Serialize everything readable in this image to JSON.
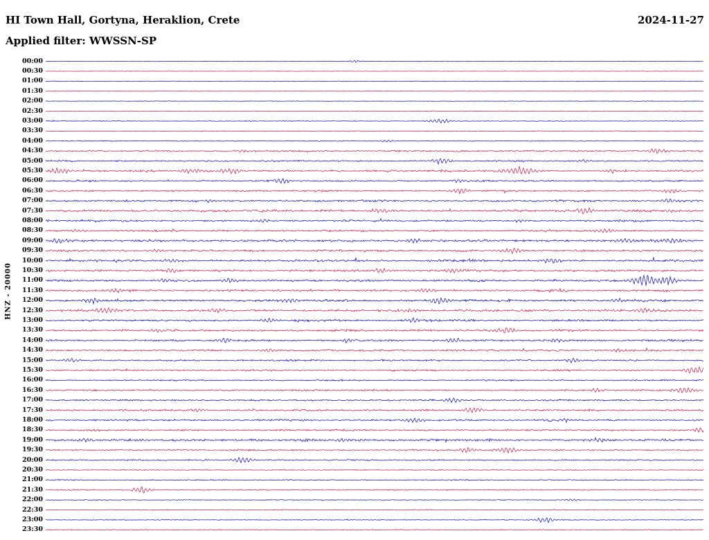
{
  "header": {
    "title": "HI Town Hall, Gortyna, Heraklion, Crete",
    "date": "2024-11-27",
    "filter_label": "Applied filter: WWSSN-SP"
  },
  "axis": {
    "channel_label": "HNZ - 20000"
  },
  "chart_data": {
    "type": "line",
    "subtype": "helicorder-seismogram",
    "title": "HI Town Hall, Gortyna, Heraklion, Crete",
    "date": "2024-11-27",
    "filter": "WWSSN-SP",
    "station_channel": "HNZ",
    "scale": "20000",
    "minutes_per_row": 30,
    "row_count": 48,
    "time_start": "00:00",
    "time_end": "23:30",
    "grid": false,
    "legend": "none",
    "colors": {
      "blue": "#0000bf",
      "red": "#cc0c3c"
    },
    "rows": [
      {
        "t": "00:00",
        "c": "blue",
        "n": 0.35,
        "e": [
          [
            0.47,
            1.3,
            6
          ]
        ]
      },
      {
        "t": "00:30",
        "c": "red",
        "n": 0.3,
        "e": []
      },
      {
        "t": "01:00",
        "c": "blue",
        "n": 0.35,
        "e": []
      },
      {
        "t": "01:30",
        "c": "red",
        "n": 0.3,
        "e": []
      },
      {
        "t": "02:00",
        "c": "blue",
        "n": 0.35,
        "e": []
      },
      {
        "t": "02:30",
        "c": "red",
        "n": 0.4,
        "e": []
      },
      {
        "t": "03:00",
        "c": "blue",
        "n": 0.5,
        "e": [
          [
            0.6,
            2.6,
            12
          ]
        ]
      },
      {
        "t": "03:30",
        "c": "red",
        "n": 0.4,
        "e": []
      },
      {
        "t": "04:00",
        "c": "blue",
        "n": 0.5,
        "e": [
          [
            0.52,
            1.2,
            8
          ]
        ]
      },
      {
        "t": "04:30",
        "c": "red",
        "n": 1.1,
        "e": [
          [
            0.3,
            1.4,
            10
          ],
          [
            0.93,
            2.4,
            12
          ]
        ]
      },
      {
        "t": "05:00",
        "c": "blue",
        "n": 1.0,
        "e": [
          [
            0.6,
            3.0,
            10
          ],
          [
            0.82,
            1.6,
            9
          ]
        ]
      },
      {
        "t": "05:30",
        "c": "red",
        "n": 1.3,
        "e": [
          [
            0.02,
            3.4,
            12
          ],
          [
            0.22,
            2.6,
            10
          ],
          [
            0.28,
            3.2,
            11
          ],
          [
            0.72,
            4.2,
            18
          ],
          [
            0.86,
            1.8,
            9
          ]
        ]
      },
      {
        "t": "06:00",
        "c": "blue",
        "n": 1.1,
        "e": [
          [
            0.36,
            3.0,
            9
          ],
          [
            0.63,
            2.0,
            10
          ]
        ]
      },
      {
        "t": "06:30",
        "c": "red",
        "n": 1.1,
        "e": [
          [
            0.63,
            2.6,
            11
          ],
          [
            0.95,
            2.0,
            9
          ]
        ]
      },
      {
        "t": "07:00",
        "c": "blue",
        "n": 1.3,
        "e": [
          [
            0.25,
            1.6,
            9
          ],
          [
            0.95,
            2.0,
            9
          ]
        ]
      },
      {
        "t": "07:30",
        "c": "red",
        "n": 1.5,
        "e": [
          [
            0.51,
            2.4,
            11
          ],
          [
            0.82,
            3.0,
            9
          ],
          [
            0.95,
            1.8,
            8
          ]
        ]
      },
      {
        "t": "08:00",
        "c": "blue",
        "n": 1.3,
        "e": [
          [
            0.33,
            1.6,
            9
          ],
          [
            0.72,
            1.6,
            9
          ]
        ]
      },
      {
        "t": "08:30",
        "c": "red",
        "n": 1.2,
        "e": [
          [
            0.05,
            2.0,
            9
          ],
          [
            0.85,
            2.8,
            11
          ]
        ]
      },
      {
        "t": "09:00",
        "c": "blue",
        "n": 1.5,
        "e": [
          [
            0.02,
            2.8,
            9
          ],
          [
            0.56,
            2.0,
            9
          ],
          [
            0.88,
            2.6,
            9
          ],
          [
            0.95,
            2.4,
            9
          ]
        ]
      },
      {
        "t": "09:30",
        "c": "red",
        "n": 1.3,
        "e": [
          [
            0.17,
            1.6,
            9
          ],
          [
            0.71,
            3.4,
            10
          ]
        ]
      },
      {
        "t": "10:00",
        "c": "blue",
        "n": 1.4,
        "e": [
          [
            0.19,
            2.0,
            9
          ],
          [
            0.77,
            2.6,
            10
          ]
        ]
      },
      {
        "t": "10:30",
        "c": "red",
        "n": 1.4,
        "e": [
          [
            0.19,
            2.4,
            9
          ],
          [
            0.51,
            2.4,
            9
          ],
          [
            0.62,
            2.4,
            9
          ]
        ]
      },
      {
        "t": "11:00",
        "c": "blue",
        "n": 1.4,
        "e": [
          [
            0.18,
            2.0,
            9
          ],
          [
            0.28,
            2.0,
            9
          ],
          [
            0.91,
            6.5,
            14
          ],
          [
            0.945,
            4.6,
            10
          ]
        ]
      },
      {
        "t": "11:30",
        "c": "red",
        "n": 1.3,
        "e": [
          [
            0.11,
            2.4,
            9
          ],
          [
            0.58,
            2.0,
            9
          ],
          [
            0.78,
            1.6,
            9
          ]
        ]
      },
      {
        "t": "12:00",
        "c": "blue",
        "n": 1.5,
        "e": [
          [
            0.07,
            2.8,
            9
          ],
          [
            0.37,
            2.4,
            9
          ],
          [
            0.6,
            3.0,
            11
          ],
          [
            0.87,
            2.4,
            9
          ]
        ]
      },
      {
        "t": "12:30",
        "c": "red",
        "n": 1.5,
        "e": [
          [
            0.09,
            3.4,
            12
          ],
          [
            0.26,
            2.4,
            9
          ],
          [
            0.55,
            2.0,
            9
          ],
          [
            0.91,
            2.4,
            9
          ]
        ]
      },
      {
        "t": "13:00",
        "c": "blue",
        "n": 1.3,
        "e": [
          [
            0.34,
            2.4,
            9
          ],
          [
            0.56,
            2.4,
            9
          ]
        ]
      },
      {
        "t": "13:30",
        "c": "red",
        "n": 1.3,
        "e": [
          [
            0.17,
            2.4,
            9
          ],
          [
            0.7,
            3.0,
            11
          ]
        ]
      },
      {
        "t": "14:00",
        "c": "blue",
        "n": 1.3,
        "e": [
          [
            0.27,
            2.4,
            9
          ],
          [
            0.46,
            2.0,
            9
          ],
          [
            0.62,
            2.4,
            9
          ],
          [
            0.78,
            2.0,
            9
          ]
        ]
      },
      {
        "t": "14:30",
        "c": "red",
        "n": 1.2,
        "e": [
          [
            0.34,
            2.0,
            9
          ],
          [
            0.87,
            2.0,
            9
          ]
        ]
      },
      {
        "t": "15:00",
        "c": "blue",
        "n": 1.1,
        "e": [
          [
            0.04,
            2.0,
            9
          ],
          [
            0.8,
            2.4,
            9
          ]
        ]
      },
      {
        "t": "15:30",
        "c": "red",
        "n": 1.1,
        "e": [
          [
            0.99,
            4.0,
            12
          ]
        ]
      },
      {
        "t": "16:00",
        "c": "blue",
        "n": 0.9,
        "e": []
      },
      {
        "t": "16:30",
        "c": "red",
        "n": 1.1,
        "e": [
          [
            0.84,
            2.0,
            9
          ],
          [
            0.97,
            3.4,
            11
          ]
        ]
      },
      {
        "t": "17:00",
        "c": "blue",
        "n": 1.1,
        "e": [
          [
            0.62,
            2.6,
            9
          ]
        ]
      },
      {
        "t": "17:30",
        "c": "red",
        "n": 1.2,
        "e": [
          [
            0.23,
            1.6,
            9
          ],
          [
            0.65,
            3.0,
            11
          ]
        ]
      },
      {
        "t": "18:00",
        "c": "blue",
        "n": 1.2,
        "e": [
          [
            0.56,
            2.6,
            11
          ],
          [
            0.79,
            2.0,
            9
          ]
        ]
      },
      {
        "t": "18:30",
        "c": "red",
        "n": 1.1,
        "e": [
          [
            0.995,
            3.0,
            9
          ]
        ]
      },
      {
        "t": "19:00",
        "c": "blue",
        "n": 1.5,
        "e": [
          [
            0.06,
            2.0,
            9
          ],
          [
            0.45,
            2.0,
            9
          ],
          [
            0.84,
            2.0,
            9
          ]
        ]
      },
      {
        "t": "19:30",
        "c": "red",
        "n": 1.0,
        "e": [
          [
            0.64,
            3.0,
            9
          ],
          [
            0.7,
            3.4,
            11
          ]
        ]
      },
      {
        "t": "20:00",
        "c": "blue",
        "n": 0.85,
        "e": [
          [
            0.3,
            3.0,
            11
          ]
        ]
      },
      {
        "t": "20:30",
        "c": "red",
        "n": 0.65,
        "e": []
      },
      {
        "t": "21:00",
        "c": "blue",
        "n": 0.65,
        "e": []
      },
      {
        "t": "21:30",
        "c": "red",
        "n": 0.65,
        "e": [
          [
            0.145,
            4.0,
            9
          ]
        ]
      },
      {
        "t": "22:00",
        "c": "blue",
        "n": 0.55,
        "e": [
          [
            0.8,
            1.4,
            8
          ]
        ]
      },
      {
        "t": "22:30",
        "c": "red",
        "n": 0.5,
        "e": []
      },
      {
        "t": "23:00",
        "c": "blue",
        "n": 0.55,
        "e": [
          [
            0.76,
            3.0,
            11
          ]
        ]
      },
      {
        "t": "23:30",
        "c": "red",
        "n": 0.55,
        "e": []
      }
    ]
  }
}
